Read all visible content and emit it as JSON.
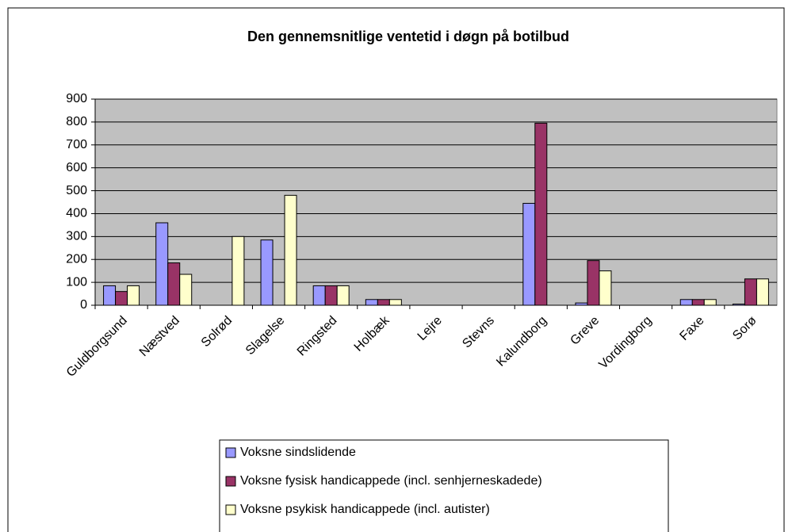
{
  "chart_data": {
    "type": "bar",
    "title": "Den gennemsnitlige ventetid i døgn på botilbud",
    "categories": [
      "Guldborgsund",
      "Næstved",
      "Solrød",
      "Slagelse",
      "Ringsted",
      "Holbæk",
      "Lejre",
      "Stevns",
      "Kalundborg",
      "Greve",
      "Vordingborg",
      "Faxe",
      "Sorø"
    ],
    "series": [
      {
        "name": "Voksne sindslidende",
        "color": "#9999ff",
        "values": [
          85,
          360,
          0,
          285,
          85,
          25,
          0,
          0,
          445,
          10,
          0,
          25,
          5
        ]
      },
      {
        "name": "Voksne fysisk handicappede (incl. senhjerneskadede)",
        "color": "#993366",
        "values": [
          60,
          185,
          0,
          0,
          85,
          25,
          0,
          0,
          795,
          195,
          0,
          25,
          115
        ]
      },
      {
        "name": "Voksne psykisk handicappede (incl. autister)",
        "color": "#ffffcc",
        "values": [
          85,
          135,
          300,
          480,
          85,
          25,
          0,
          0,
          0,
          150,
          0,
          25,
          115
        ]
      }
    ],
    "ylim": [
      0,
      900
    ],
    "yticks": [
      0,
      100,
      200,
      300,
      400,
      500,
      600,
      700,
      800,
      900
    ],
    "grid": true,
    "legend": "bottom"
  }
}
